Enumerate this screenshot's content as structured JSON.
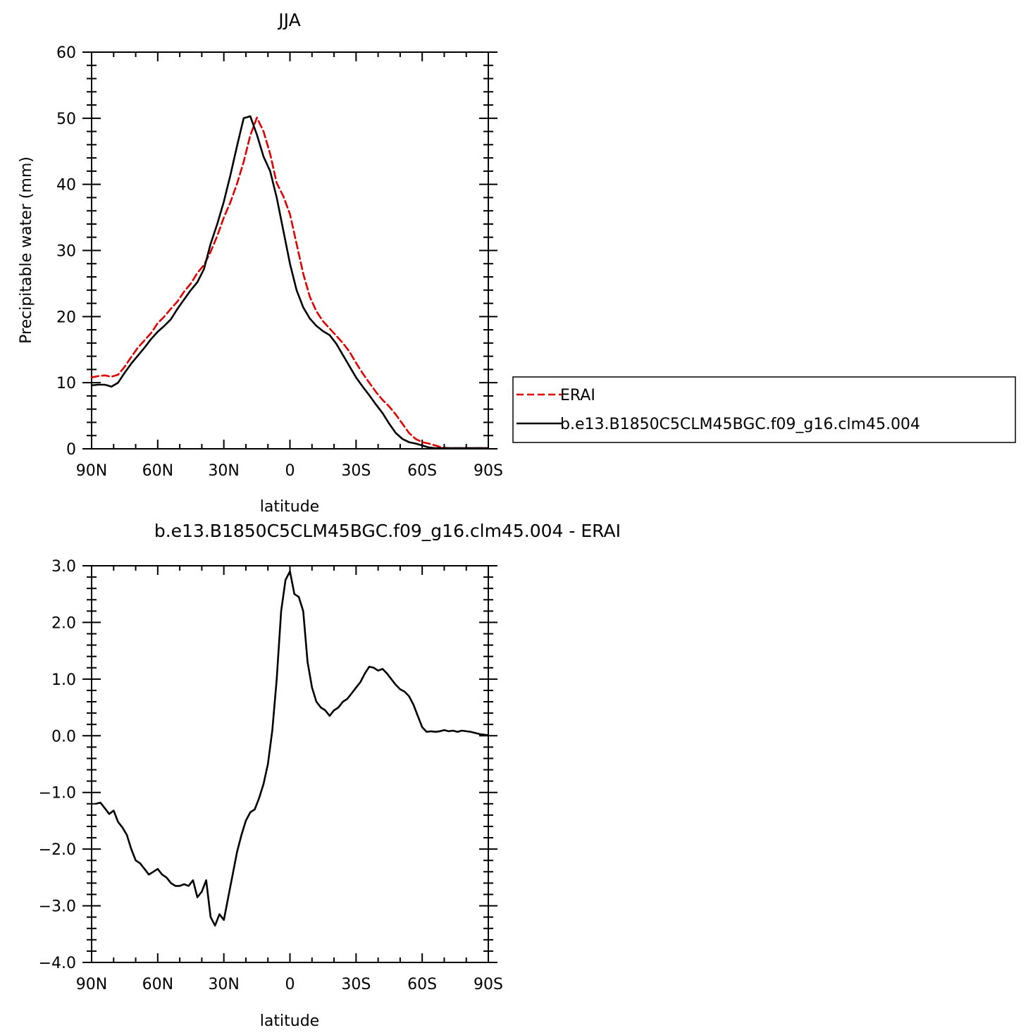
{
  "chart_data": [
    {
      "type": "line",
      "title": "JJA",
      "xlabel": "latitude",
      "ylabel": "Precipitable  water  (mm)",
      "xlim": [
        90,
        -90
      ],
      "ylim": [
        0,
        60
      ],
      "x_ticks": [
        90,
        60,
        30,
        0,
        -30,
        -60,
        -90
      ],
      "x_tick_labels": [
        "90N",
        "60N",
        "30N",
        "0",
        "30S",
        "60S",
        "90S"
      ],
      "y_ticks": [
        0,
        10,
        20,
        30,
        40,
        50,
        60
      ],
      "y_tick_labels": [
        "0",
        "10",
        "20",
        "30",
        "40",
        "50",
        "60"
      ],
      "grid": false,
      "legend_position": "right",
      "series": [
        {
          "name": "ERAI",
          "color": "#e00000",
          "dash": true,
          "x": [
            90,
            87,
            84,
            81,
            78,
            75,
            72,
            69,
            66,
            63,
            60,
            57,
            54,
            51,
            48,
            45,
            42,
            39,
            36,
            33,
            30,
            27,
            24,
            21,
            18,
            15,
            12,
            9,
            6,
            3,
            0,
            -3,
            -6,
            -9,
            -12,
            -15,
            -18,
            -21,
            -24,
            -27,
            -30,
            -33,
            -36,
            -39,
            -42,
            -45,
            -48,
            -51,
            -54,
            -57,
            -60,
            -63,
            -66,
            -69,
            -72,
            -75,
            -78,
            -81,
            -84,
            -87,
            -90
          ],
          "y": [
            10.8,
            11.0,
            11.1,
            10.9,
            11.2,
            12.4,
            13.9,
            15.3,
            16.4,
            17.5,
            19.0,
            20.0,
            21.2,
            22.3,
            23.8,
            25.0,
            26.6,
            27.8,
            29.8,
            32.2,
            35.0,
            37.3,
            40.1,
            43.4,
            47.4,
            50.1,
            48.0,
            44.6,
            40.2,
            38.2,
            35.5,
            31.0,
            26.5,
            23.0,
            20.8,
            19.3,
            18.2,
            17.1,
            16.0,
            14.7,
            13.0,
            11.4,
            10.0,
            8.6,
            7.4,
            6.4,
            5.2,
            3.8,
            2.4,
            1.5,
            1.0,
            0.8,
            0.5,
            0.2,
            0.1,
            0.1,
            0.1,
            0.1,
            0.1,
            0.1,
            0.1
          ]
        },
        {
          "name": "b.e13.B1850C5CLM45BGC.f09_g16.clm45.004",
          "color": "#000000",
          "dash": false,
          "x": [
            90,
            87,
            84,
            81,
            78,
            75,
            72,
            69,
            66,
            63,
            60,
            57,
            54,
            51,
            48,
            45,
            42,
            39,
            36,
            33,
            30,
            27,
            24,
            21,
            18,
            15,
            12,
            9,
            6,
            3,
            0,
            -3,
            -6,
            -9,
            -12,
            -15,
            -18,
            -21,
            -24,
            -27,
            -30,
            -33,
            -36,
            -39,
            -42,
            -45,
            -48,
            -51,
            -54,
            -57,
            -60,
            -63,
            -66,
            -69,
            -72,
            -75,
            -78,
            -81,
            -84,
            -87,
            -90
          ],
          "y": [
            9.6,
            9.7,
            9.7,
            9.4,
            10.0,
            11.5,
            12.9,
            14.1,
            15.3,
            16.6,
            17.7,
            18.6,
            19.6,
            21.2,
            22.6,
            24.0,
            25.2,
            27.2,
            31.0,
            34.0,
            37.4,
            41.4,
            45.8,
            50.0,
            50.3,
            47.5,
            44.2,
            42.0,
            38.0,
            33.0,
            28.0,
            24.0,
            21.4,
            19.7,
            18.6,
            17.8,
            17.2,
            15.9,
            14.2,
            12.5,
            10.8,
            9.4,
            8.1,
            6.7,
            5.4,
            3.8,
            2.4,
            1.5,
            1.0,
            0.8,
            0.5,
            0.2,
            0.1,
            0.1,
            0.1,
            0.1,
            0.1,
            0.1,
            0.1,
            0.1,
            0.1
          ]
        }
      ]
    },
    {
      "type": "line",
      "title": "b.e13.B1850C5CLM45BGC.f09_g16.clm45.004  -  ERAI",
      "xlabel": "latitude",
      "ylabel": "Precipitable  water  (mm)",
      "xlim": [
        90,
        -90
      ],
      "ylim": [
        -4,
        3
      ],
      "x_ticks": [
        90,
        60,
        30,
        0,
        -30,
        -60,
        -90
      ],
      "x_tick_labels": [
        "90N",
        "60N",
        "30N",
        "0",
        "30S",
        "60S",
        "90S"
      ],
      "y_ticks": [
        3,
        2,
        1,
        0,
        -1,
        -2,
        -3,
        -4
      ],
      "y_tick_labels": [
        "3.0",
        "2.0",
        "1.0",
        "0.0",
        "−1.0",
        "−2.0",
        "−3.0",
        "−4.0"
      ],
      "grid": false,
      "series": [
        {
          "name": "",
          "color": "#000000",
          "dash": false,
          "x": [
            88,
            86,
            84,
            82,
            80,
            78,
            76,
            74,
            72,
            70,
            68,
            66,
            64,
            62,
            60,
            58,
            56,
            54,
            52,
            50,
            48,
            46,
            44,
            42,
            40,
            38,
            36,
            34,
            32,
            30,
            28,
            26,
            24,
            22,
            20,
            18,
            16,
            14,
            12,
            10,
            8,
            6,
            4,
            2,
            0,
            -2,
            -4,
            -6,
            -8,
            -10,
            -12,
            -14,
            -16,
            -18,
            -20,
            -22,
            -24,
            -26,
            -28,
            -30,
            -32,
            -34,
            -36,
            -38,
            -40,
            -42,
            -44,
            -46,
            -48,
            -50,
            -52,
            -54,
            -56,
            -58,
            -60,
            -62,
            -64,
            -66,
            -68,
            -70,
            -72,
            -74,
            -76,
            -78,
            -80,
            -82,
            -84,
            -86,
            -88,
            -90
          ],
          "y": [
            -1.2,
            -1.18,
            -1.28,
            -1.38,
            -1.32,
            -1.52,
            -1.62,
            -1.75,
            -2.0,
            -2.2,
            -2.25,
            -2.35,
            -2.45,
            -2.4,
            -2.35,
            -2.45,
            -2.5,
            -2.6,
            -2.65,
            -2.65,
            -2.62,
            -2.65,
            -2.55,
            -2.85,
            -2.75,
            -2.55,
            -3.2,
            -3.35,
            -3.15,
            -3.25,
            -2.85,
            -2.45,
            -2.05,
            -1.75,
            -1.5,
            -1.35,
            -1.3,
            -1.1,
            -0.85,
            -0.5,
            0.1,
            1.0,
            2.2,
            2.75,
            2.9,
            2.5,
            2.45,
            2.2,
            1.3,
            0.85,
            0.6,
            0.5,
            0.45,
            0.35,
            0.45,
            0.5,
            0.6,
            0.65,
            0.75,
            0.85,
            0.95,
            1.1,
            1.22,
            1.2,
            1.15,
            1.18,
            1.1,
            1.0,
            0.9,
            0.82,
            0.78,
            0.7,
            0.55,
            0.35,
            0.15,
            0.07,
            0.08,
            0.07,
            0.08,
            0.1,
            0.08,
            0.09,
            0.07,
            0.09,
            0.08,
            0.07,
            0.05,
            0.03,
            0.02,
            0.01
          ]
        }
      ]
    }
  ],
  "legend": {
    "items": [
      {
        "label": "ERAI",
        "color": "#e00000",
        "dash": true
      },
      {
        "label": "b.e13.B1850C5CLM45BGC.f09_g16.clm45.004",
        "color": "#000000",
        "dash": false
      }
    ]
  }
}
